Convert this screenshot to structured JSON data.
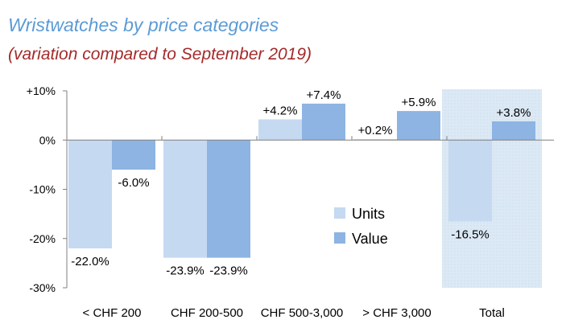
{
  "chart_data": {
    "type": "bar",
    "title": "Wristwatches by price categories",
    "subtitle": "(variation compared to September 2019)",
    "categories": [
      "< CHF 200",
      "CHF 200-500",
      "CHF 500-3,000",
      "> CHF 3,000",
      "Total"
    ],
    "series": [
      {
        "name": "Units",
        "values": [
          -22.0,
          -23.9,
          4.2,
          0.2,
          -16.5
        ],
        "labels": [
          "-22.0%",
          "-23.9%",
          "+4.2%",
          "+0.2%",
          "-16.5%"
        ],
        "color": "#c5d9f1"
      },
      {
        "name": "Value",
        "values": [
          -6.0,
          -23.9,
          7.4,
          5.9,
          3.8
        ],
        "labels": [
          "-6.0%",
          "-23.9%",
          "+7.4%",
          "+5.9%",
          "+3.8%"
        ],
        "color": "#8db4e2"
      }
    ],
    "yticks": [
      10,
      0,
      -10,
      -20,
      -30
    ],
    "ytick_labels": [
      "+10%",
      "0%",
      "-10%",
      "-20%",
      "-30%"
    ],
    "ylim": [
      -30,
      10
    ],
    "highlight_category": "Total",
    "highlight_color": "#dce9f5",
    "legend_position": "center-right",
    "grid": false
  }
}
